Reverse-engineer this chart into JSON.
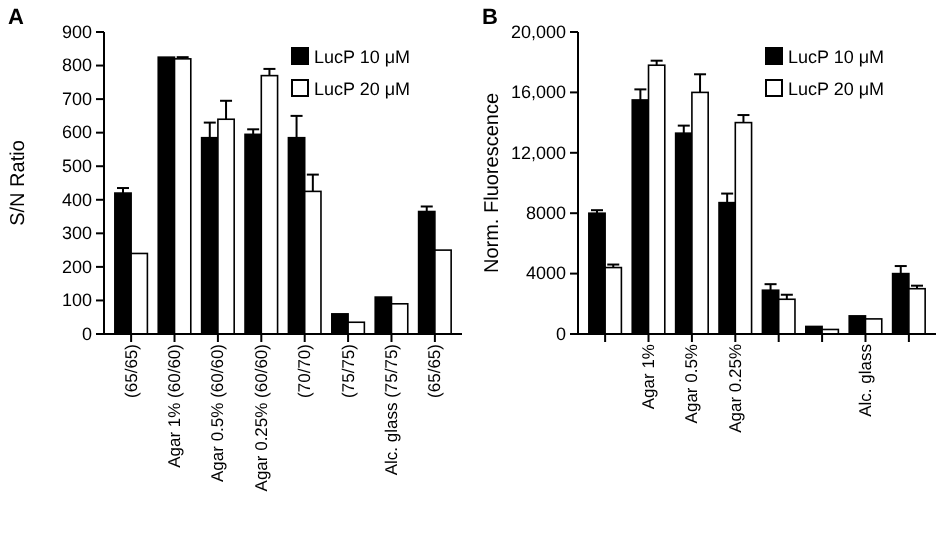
{
  "chart_data": [
    {
      "type": "bar",
      "title": "A",
      "ylabel": "S/N Ratio",
      "categories": [
        "(65/65)",
        "Agar 1% (60/60)",
        "Agar 0.5% (60/60)",
        "Agar 0.25% (60/60)",
        "(70/70)",
        "(75/75)",
        "Alc. glass (75/75)",
        "(65/65)"
      ],
      "ylim": [
        0,
        900
      ],
      "yticks": [
        0,
        100,
        200,
        300,
        400,
        500,
        600,
        700,
        800,
        900
      ],
      "legend": "top right",
      "grid": false,
      "series": [
        {
          "name": "LucP 10 μM",
          "color": "#000000",
          "values": [
            420,
            825,
            585,
            595,
            585,
            60,
            110,
            365
          ],
          "errors": [
            [
              420,
              435
            ],
            null,
            [
              585,
              630
            ],
            [
              595,
              610
            ],
            [
              585,
              650
            ],
            null,
            null,
            [
              365,
              380
            ]
          ]
        },
        {
          "name": "LucP 20 μM",
          "color": "#ffffff",
          "values": [
            240,
            820,
            640,
            770,
            425,
            35,
            90,
            250
          ],
          "errors": [
            null,
            [
              820,
              825
            ],
            [
              640,
              695
            ],
            [
              770,
              790
            ],
            [
              425,
              475
            ],
            null,
            null,
            null
          ]
        }
      ]
    },
    {
      "type": "bar",
      "title": "B",
      "ylabel": "Norm. Fluorescence",
      "categories": [
        null,
        "Agar 1%",
        "Agar 0.5%",
        "Agar 0.25%",
        null,
        null,
        "Alc. glass",
        null
      ],
      "ylim": [
        0,
        20000
      ],
      "yticks": [
        0,
        4000,
        8000,
        {
          "value": 12000,
          "label": "12,000"
        },
        {
          "value": 16000,
          "label": "16,000"
        },
        {
          "value": 20000,
          "label": "20,000"
        }
      ],
      "legend": "top right",
      "grid": false,
      "series": [
        {
          "name": "LucP 10 μM",
          "color": "#000000",
          "values": [
            8000,
            15500,
            13300,
            8700,
            2900,
            500,
            1200,
            4000
          ],
          "errors": [
            [
              8000,
              8200
            ],
            [
              15500,
              16200
            ],
            [
              13300,
              13800
            ],
            [
              8700,
              9300
            ],
            [
              2900,
              3300
            ],
            null,
            null,
            [
              4000,
              4500
            ]
          ]
        },
        {
          "name": "LucP 20 μM",
          "color": "#ffffff",
          "values": [
            4400,
            17800,
            16000,
            14000,
            2300,
            300,
            1000,
            3000
          ],
          "errors": [
            [
              4400,
              4600
            ],
            [
              17800,
              18100
            ],
            [
              16000,
              17200
            ],
            [
              14000,
              14500
            ],
            [
              2300,
              2600
            ],
            null,
            null,
            [
              3000,
              3200
            ]
          ]
        }
      ]
    }
  ]
}
